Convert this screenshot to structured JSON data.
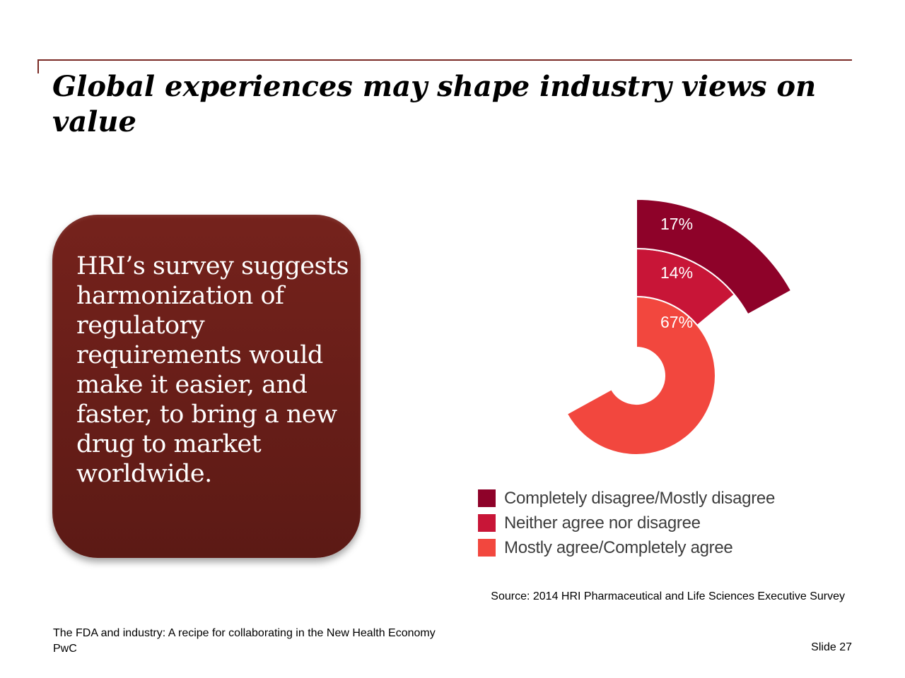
{
  "slide": {
    "title": "Global experiences may shape industry views on value",
    "callout": "HRI’s survey suggests harmonization of regulatory requirements would make it easier, and faster, to bring a new drug to market worldwide.",
    "source": "Source: 2014 HRI Pharmaceutical and Life Sciences Executive Survey",
    "footer_title": "The FDA and industry: A recipe for collaborating in the New Health Economy",
    "footer_brand": "PwC",
    "slide_number": "Slide 27"
  },
  "colors": {
    "accent_rule": "#7a2a25",
    "callout_fill": "#6a1f1a"
  },
  "chart_data": {
    "type": "pie",
    "variant": "radial-bar",
    "series": [
      {
        "label": "Mostly agree/Completely agree",
        "value": 67,
        "display": "67%",
        "color": "#f2473e"
      },
      {
        "label": "Neither agree nor disagree",
        "value": 14,
        "display": "14%",
        "color": "#c81537"
      },
      {
        "label": "Completely disagree/Mostly disagree",
        "value": 17,
        "display": "17%",
        "color": "#8e0229"
      }
    ],
    "legend": [
      {
        "label": "Completely disagree/Mostly disagree",
        "color": "#8e0229"
      },
      {
        "label": "Neither agree nor disagree",
        "color": "#c81537"
      },
      {
        "label": "Mostly agree/Completely agree",
        "color": "#f2473e"
      }
    ],
    "legend_position": "bottom"
  }
}
